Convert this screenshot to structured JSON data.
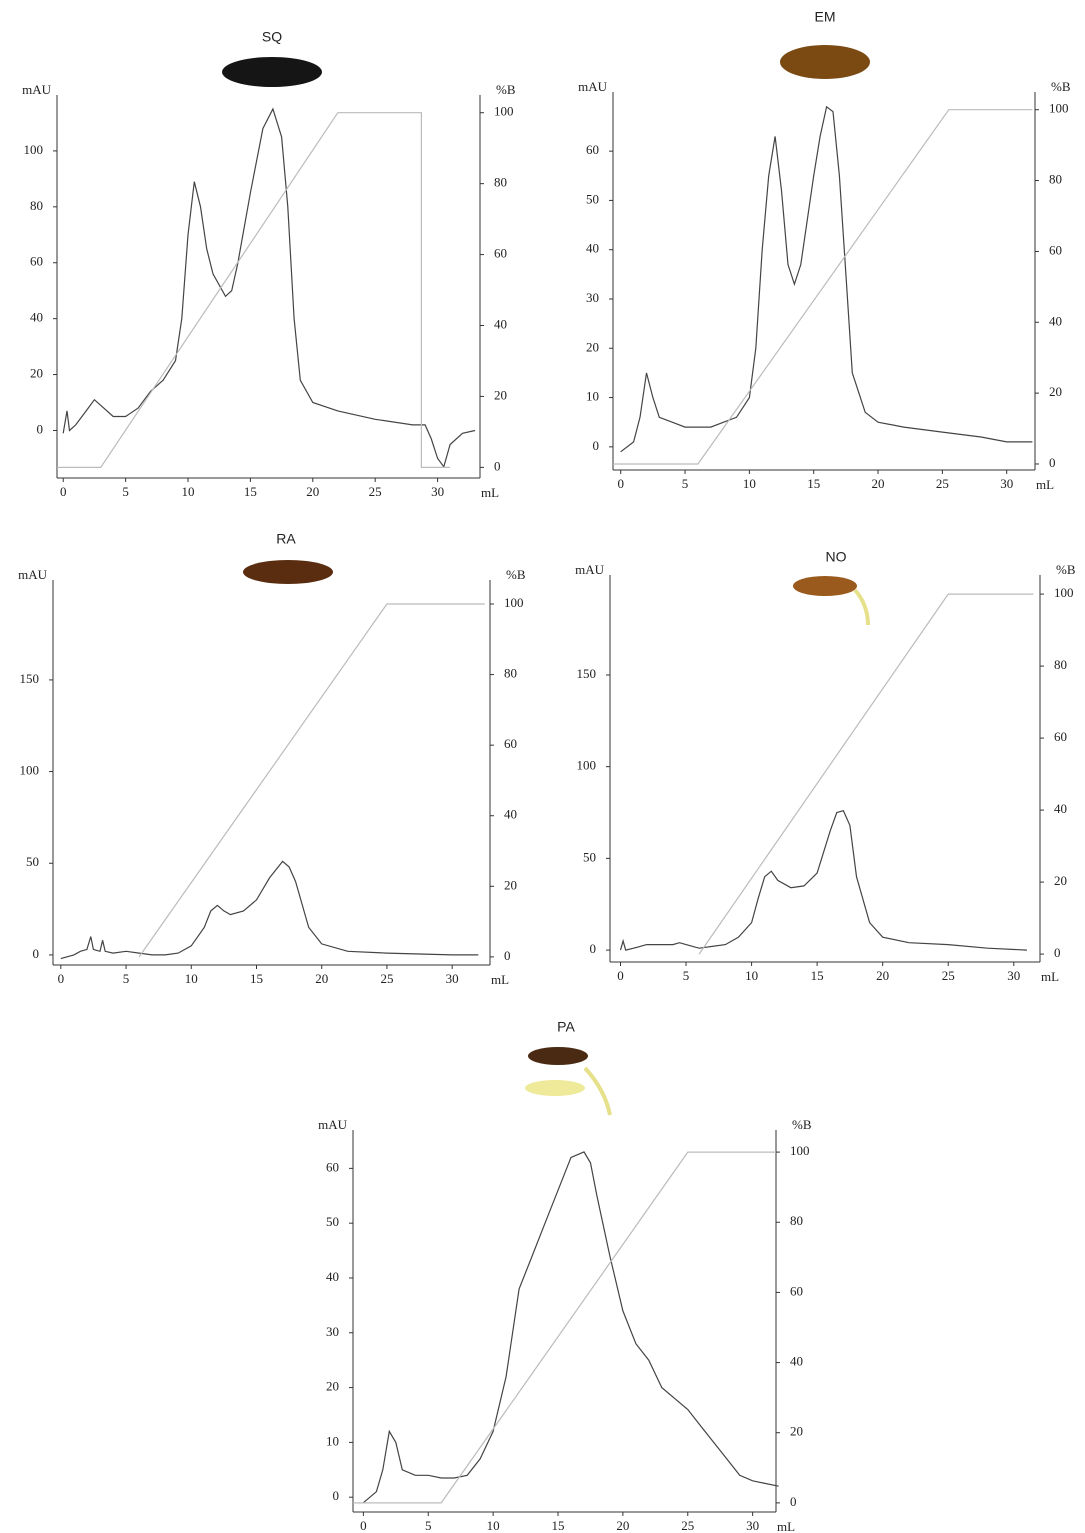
{
  "chart_data": [
    {
      "type": "line",
      "title": "SQ",
      "ylabel": "mAU",
      "y2label": "%B",
      "xlabel": "mL",
      "xlim": [
        -0.5,
        33.4
      ],
      "xticks": [
        0,
        5,
        10,
        15,
        20,
        25,
        30
      ],
      "ylim": [
        -17,
        120
      ],
      "yticks": [
        0,
        20,
        40,
        60,
        80,
        100
      ],
      "y2lim": [
        -3,
        105
      ],
      "y2ticks": [
        0,
        20,
        40,
        60,
        80,
        100
      ],
      "series": [
        {
          "color": "#444444",
          "axis": "y",
          "x": [
            0,
            0.3,
            0.5,
            1,
            2,
            2.5,
            3,
            4,
            5,
            6,
            7,
            8,
            9,
            9.5,
            10,
            10.5,
            11,
            11.5,
            12,
            13,
            13.5,
            14,
            15,
            16,
            16.8,
            17.5,
            18,
            18.5,
            19,
            20,
            22,
            25,
            28,
            29,
            29.5,
            30,
            30.5,
            31,
            32,
            33
          ],
          "values": [
            -1,
            7,
            0,
            2,
            8,
            11,
            9,
            5,
            5,
            8,
            14,
            18,
            25,
            40,
            70,
            89,
            80,
            65,
            56,
            48,
            50,
            60,
            85,
            108,
            115,
            105,
            80,
            40,
            18,
            10,
            7,
            4,
            2,
            2,
            -3,
            -10,
            -13,
            -5,
            -1,
            0
          ]
        },
        {
          "color": "#bbbbbb",
          "axis": "y2",
          "x": [
            -0.5,
            3,
            22,
            28.7,
            28.7,
            31
          ],
          "values": [
            0,
            0,
            100,
            100,
            0,
            0
          ]
        }
      ]
    },
    {
      "type": "line",
      "title": "EM",
      "ylabel": "mAU",
      "y2label": "%B",
      "xlabel": "mL",
      "xlim": [
        -0.6,
        32.2
      ],
      "xticks": [
        0,
        5,
        10,
        15,
        20,
        25,
        30
      ],
      "ylim": [
        -4.7,
        72
      ],
      "yticks": [
        0,
        10,
        20,
        30,
        40,
        50,
        60
      ],
      "y2lim": [
        -1.7,
        105
      ],
      "y2ticks": [
        0,
        20,
        40,
        60,
        80,
        100
      ],
      "series": [
        {
          "color": "#444444",
          "axis": "y",
          "x": [
            0,
            1,
            1.5,
            2,
            2.5,
            3,
            4,
            5,
            6,
            7,
            8,
            9,
            10,
            10.5,
            11,
            11.5,
            12,
            12.5,
            13,
            13.5,
            14,
            15,
            15.5,
            16,
            16.5,
            17,
            17.5,
            18,
            19,
            20,
            22,
            25,
            28,
            30,
            32
          ],
          "values": [
            -1,
            1,
            6,
            15,
            10,
            6,
            5,
            4,
            4,
            4,
            5,
            6,
            10,
            20,
            40,
            55,
            63,
            52,
            37,
            33,
            37,
            55,
            63,
            69,
            68,
            55,
            35,
            15,
            7,
            5,
            4,
            3,
            2,
            1,
            1
          ]
        },
        {
          "color": "#bbbbbb",
          "axis": "y2",
          "x": [
            -0.6,
            6,
            25.5,
            32
          ],
          "values": [
            0,
            0,
            100,
            100
          ]
        }
      ]
    },
    {
      "type": "line",
      "title": "RA",
      "ylabel": "mAU",
      "y2label": "%B",
      "xlabel": "mL",
      "xlim": [
        -0.6,
        32.9
      ],
      "xticks": [
        0,
        5,
        10,
        15,
        20,
        25,
        30
      ],
      "ylim": [
        -5.5,
        204.5
      ],
      "yticks": [
        0,
        50,
        100,
        150
      ],
      "y2lim": [
        -2.3,
        106.8
      ],
      "y2ticks": [
        0,
        20,
        40,
        60,
        80,
        100
      ],
      "series": [
        {
          "color": "#444444",
          "axis": "y",
          "x": [
            0,
            1,
            1.5,
            2,
            2.3,
            2.5,
            3,
            3.2,
            3.4,
            4,
            5,
            6,
            7,
            8,
            9,
            10,
            11,
            11.5,
            12,
            12.5,
            13,
            14,
            15,
            16,
            17,
            17.5,
            18,
            19,
            20,
            22,
            25,
            30,
            32
          ],
          "values": [
            -2,
            0,
            2,
            3,
            10,
            3,
            2,
            8,
            2,
            1,
            2,
            1,
            0,
            0,
            1,
            5,
            15,
            24,
            27,
            24,
            22,
            24,
            30,
            42,
            51,
            48,
            40,
            15,
            6,
            2,
            1,
            0,
            0
          ]
        },
        {
          "color": "#bbbbbb",
          "axis": "y2",
          "x": [
            6,
            25,
            32.5
          ],
          "values": [
            0,
            100,
            100
          ]
        }
      ]
    },
    {
      "type": "line",
      "title": "NO",
      "ylabel": "mAU",
      "y2label": "%B",
      "xlabel": "mL",
      "xlim": [
        -0.8,
        32
      ],
      "xticks": [
        0,
        5,
        10,
        15,
        20,
        25,
        30
      ],
      "ylim": [
        -6.5,
        204.5
      ],
      "yticks": [
        0,
        50,
        100,
        150
      ],
      "y2lim": [
        -2.2,
        105.3
      ],
      "y2ticks": [
        0,
        20,
        40,
        60,
        80,
        100
      ],
      "series": [
        {
          "color": "#444444",
          "axis": "y",
          "x": [
            0,
            0.2,
            0.4,
            1,
            2,
            3,
            4,
            4.5,
            5,
            6,
            7,
            8,
            9,
            10,
            10.5,
            11,
            11.5,
            12,
            13,
            14,
            15,
            16,
            16.5,
            17,
            17.5,
            18,
            19,
            20,
            22,
            25,
            28,
            31
          ],
          "values": [
            0,
            5,
            0,
            1,
            3,
            3,
            3,
            4,
            3,
            1,
            2,
            3,
            7,
            15,
            28,
            40,
            43,
            38,
            34,
            35,
            42,
            65,
            75,
            76,
            68,
            40,
            15,
            7,
            4,
            3,
            1,
            0
          ]
        },
        {
          "color": "#bbbbbb",
          "axis": "y2",
          "x": [
            6,
            25,
            31.5
          ],
          "values": [
            0,
            100,
            100
          ]
        }
      ]
    },
    {
      "type": "line",
      "title": "PA",
      "ylabel": "mAU",
      "y2label": "%B",
      "xlabel": "mL",
      "xlim": [
        -0.8,
        31.8
      ],
      "xticks": [
        0,
        5,
        10,
        15,
        20,
        25,
        30
      ],
      "ylim": [
        -2.7,
        67
      ],
      "yticks": [
        0,
        10,
        20,
        30,
        40,
        50,
        60
      ],
      "y2lim": [
        -2.6,
        106.3
      ],
      "y2ticks": [
        0,
        20,
        40,
        60,
        80,
        100
      ],
      "series": [
        {
          "color": "#444444",
          "axis": "y",
          "x": [
            0,
            1,
            1.5,
            2,
            2.5,
            3,
            4,
            5,
            6,
            7,
            8,
            9,
            10,
            11,
            12,
            13,
            14,
            15,
            16,
            17,
            17.5,
            18,
            19,
            20,
            21,
            22,
            23,
            24,
            25,
            26,
            27,
            28,
            29,
            30,
            31,
            32
          ],
          "values": [
            -1,
            1,
            5,
            12,
            10,
            5,
            4,
            4,
            3.5,
            3.5,
            4,
            7,
            12,
            22,
            38,
            44,
            50,
            56,
            62,
            63,
            61,
            55,
            44,
            34,
            28,
            25,
            20,
            18,
            16,
            13,
            10,
            7,
            4,
            3,
            2.5,
            2
          ]
        },
        {
          "color": "#bbbbbb",
          "axis": "y2",
          "x": [
            -0.8,
            6,
            25,
            31.8
          ],
          "values": [
            0,
            0,
            100,
            100
          ]
        }
      ]
    }
  ]
}
